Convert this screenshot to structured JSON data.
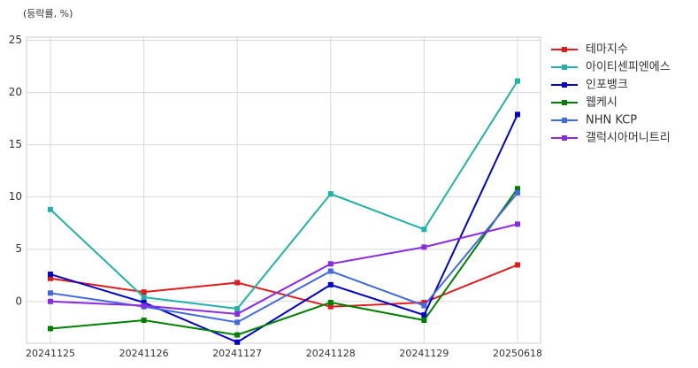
{
  "chart_data": {
    "type": "line",
    "y_label": "(등락률, %)",
    "categories": [
      "20241125",
      "20241126",
      "20241127",
      "20241128",
      "20241129",
      "20250618"
    ],
    "series": [
      {
        "name": "테마지수",
        "color": "#e31a1c",
        "values": [
          2.2,
          0.9,
          1.8,
          -0.5,
          -0.1,
          3.5
        ]
      },
      {
        "name": "아이티센피엔에스",
        "color": "#20b2aa",
        "values": [
          8.8,
          0.4,
          -0.7,
          10.3,
          6.9,
          21.1
        ]
      },
      {
        "name": "인포뱅크",
        "color": "#0000cd",
        "values": [
          2.6,
          -0.1,
          -3.9,
          1.6,
          -1.3,
          17.9
        ]
      },
      {
        "name": "웹케시",
        "color": "#008000",
        "values": [
          -2.6,
          -1.8,
          -3.2,
          -0.1,
          -1.8,
          10.8
        ]
      },
      {
        "name": "NHN KCP",
        "color": "#4169e1",
        "values": [
          0.8,
          -0.5,
          -2.0,
          2.9,
          -0.4,
          10.4
        ]
      },
      {
        "name": "갤럭시아머니트리",
        "color": "#8a2be2",
        "values": [
          0.0,
          -0.4,
          -1.2,
          3.6,
          5.2,
          7.4
        ]
      }
    ],
    "ylim": [
      -4,
      25.3
    ],
    "yticks": [
      0,
      5,
      10,
      15,
      20,
      25
    ],
    "grid": true,
    "legend": "right"
  }
}
